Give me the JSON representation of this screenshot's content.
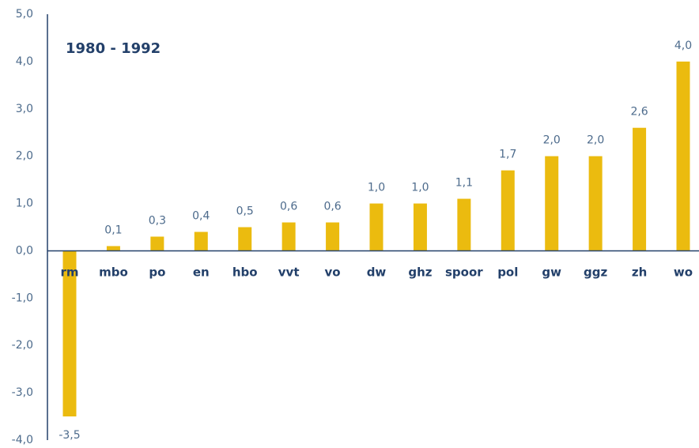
{
  "chart_data": {
    "type": "bar",
    "title": "1980 - 1992",
    "categories": [
      "rm",
      "mbo",
      "po",
      "en",
      "hbo",
      "vvt",
      "vo",
      "dw",
      "ghz",
      "spoor",
      "pol",
      "gw",
      "ggz",
      "zh",
      "wo"
    ],
    "values": [
      -3.5,
      0.1,
      0.3,
      0.4,
      0.5,
      0.6,
      0.6,
      1.0,
      1.0,
      1.1,
      1.7,
      2.0,
      2.0,
      2.6,
      4.0
    ],
    "value_labels": [
      "-3,5",
      "0,1",
      "0,3",
      "0,4",
      "0,5",
      "0,6",
      "0,6",
      "1,0",
      "1,0",
      "1,1",
      "1,7",
      "2,0",
      "2,0",
      "2,6",
      "4,0"
    ],
    "color": "#ebbb0f",
    "ylim": [
      -4,
      5
    ],
    "yticks": [
      {
        "value": 5,
        "label": "5,0"
      },
      {
        "value": 4,
        "label": "4,0"
      },
      {
        "value": 3,
        "label": "3,0"
      },
      {
        "value": 2,
        "label": "2,0"
      },
      {
        "value": 1,
        "label": "1,0"
      },
      {
        "value": 0,
        "label": "0,0"
      },
      {
        "value": -1,
        "label": "-1,0"
      },
      {
        "value": -2,
        "label": "-2,0"
      },
      {
        "value": -3,
        "label": "-3,0"
      },
      {
        "value": -4,
        "label": "-4,0"
      }
    ],
    "grid": false
  }
}
